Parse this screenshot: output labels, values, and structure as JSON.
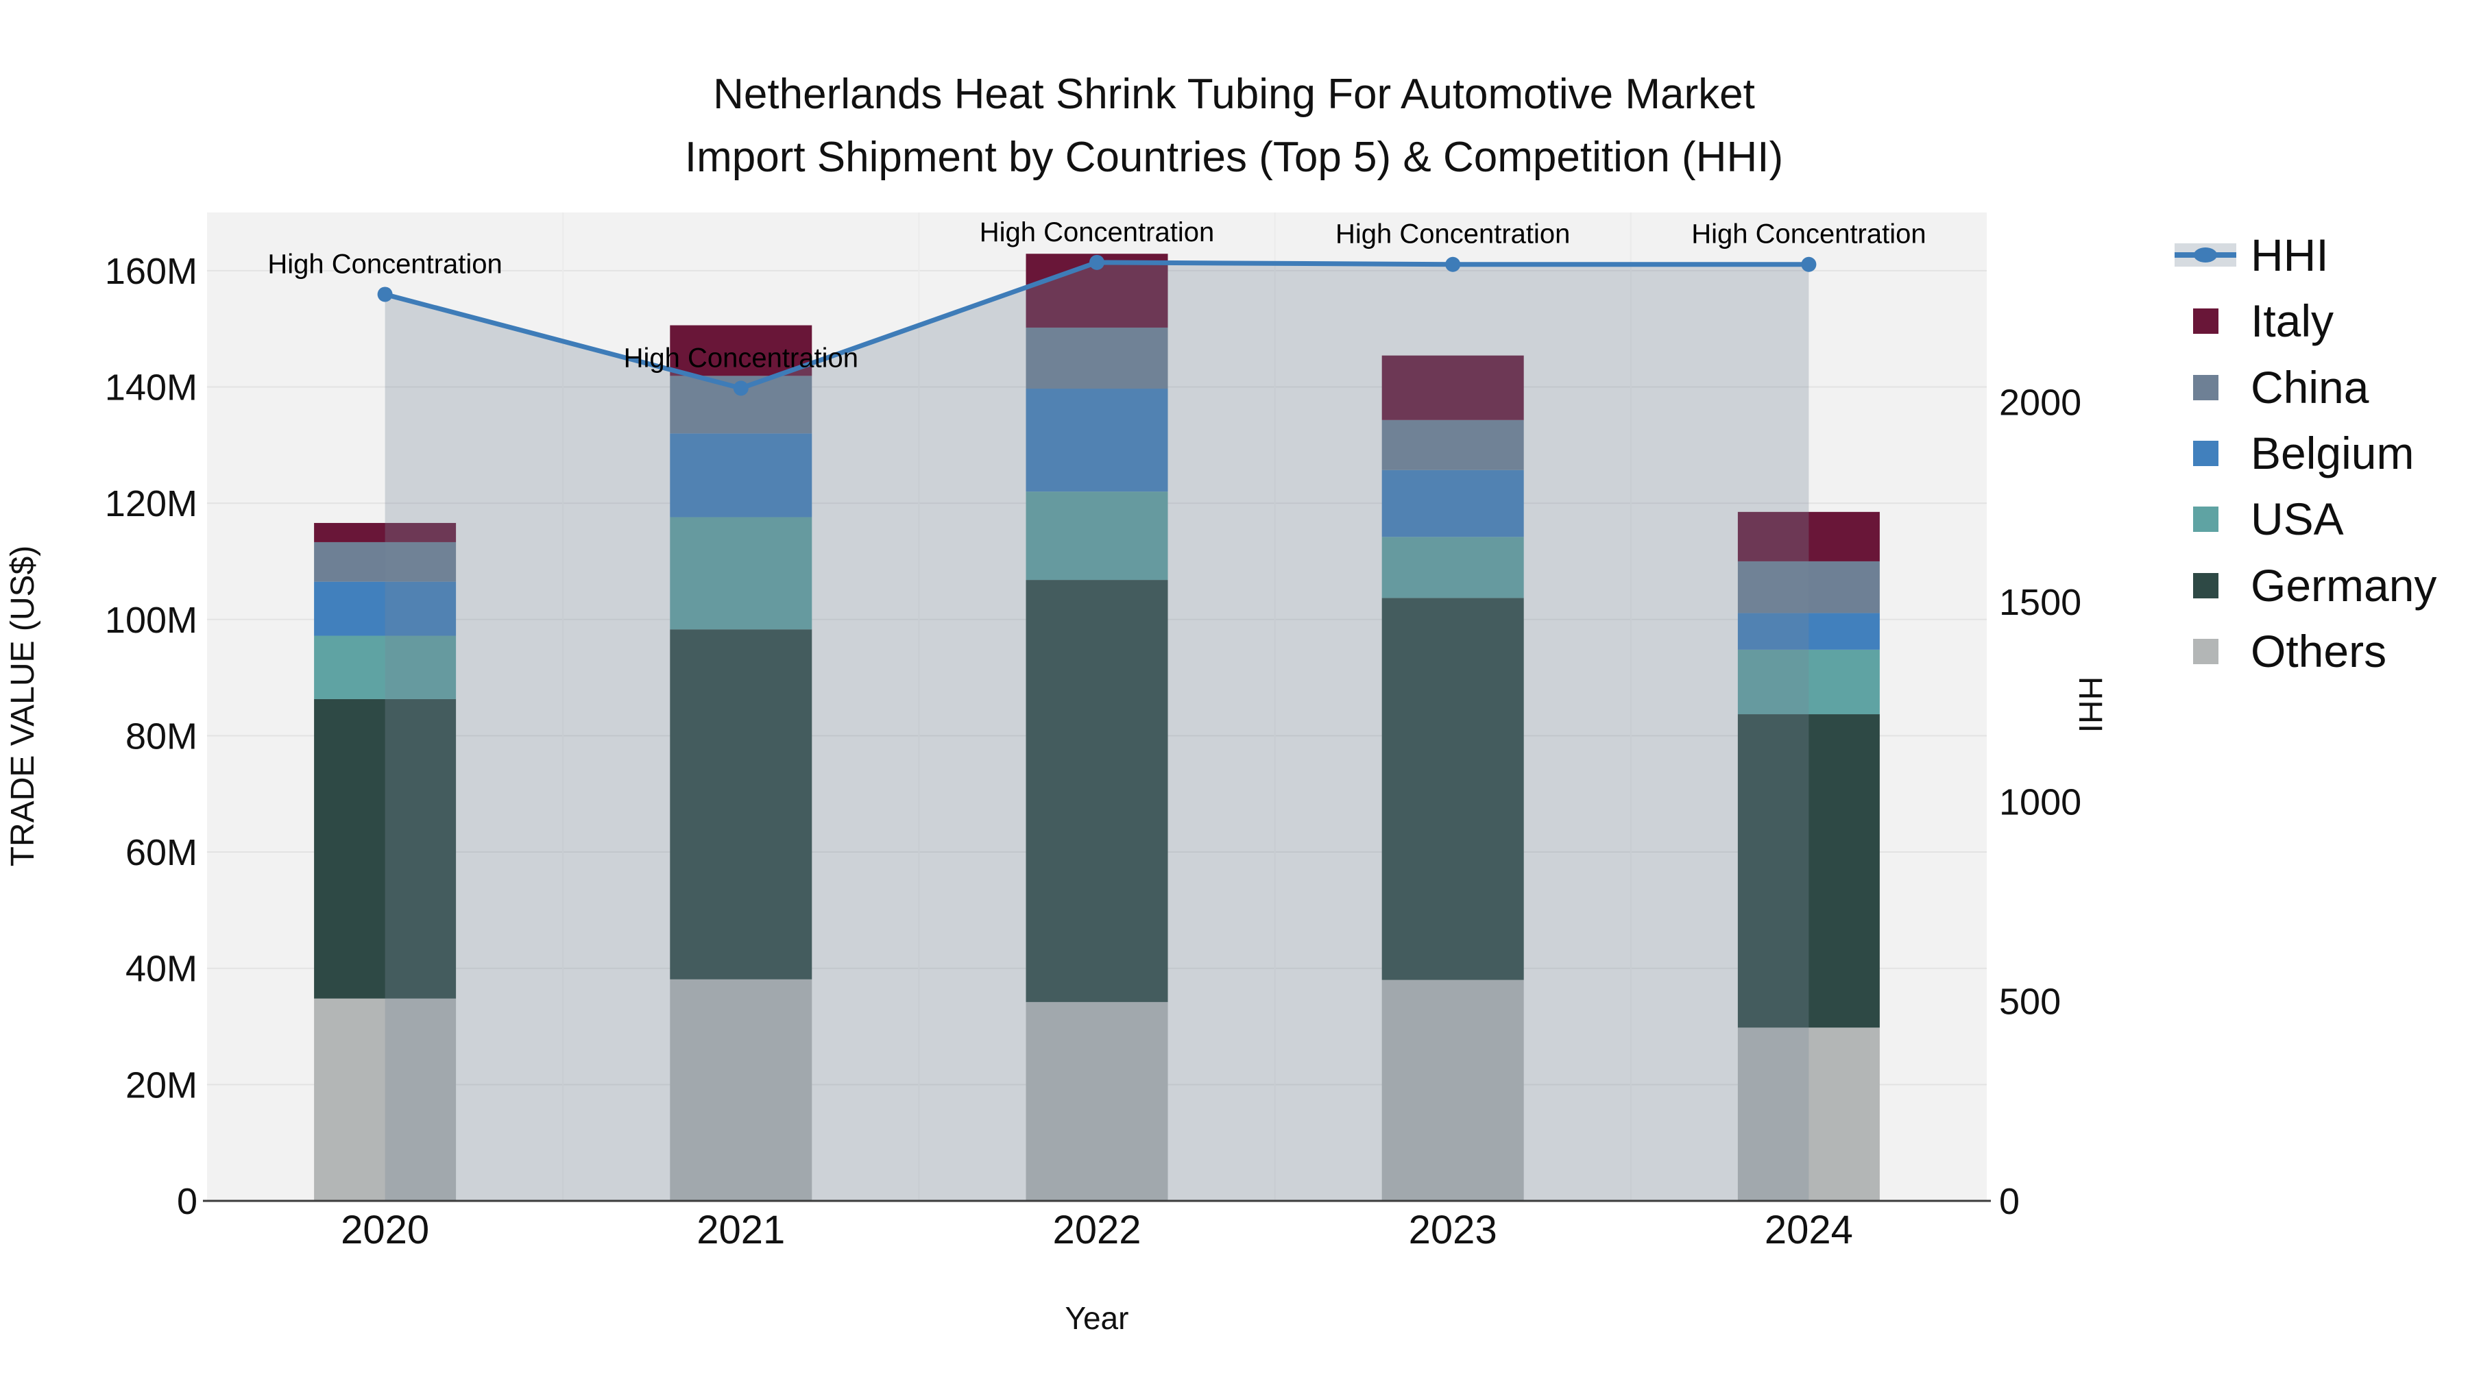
{
  "title": {
    "line1": "Netherlands Heat Shrink Tubing For Automotive Market",
    "line2": "Import Shipment by Countries (Top 5) & Competition (HHI)"
  },
  "legend": {
    "items": [
      {
        "id": "hhi",
        "label": "HHI",
        "type": "line",
        "line_color": "#3E7CB8",
        "band_color": "rgba(119,136,153,0.30)"
      },
      {
        "id": "italy",
        "label": "Italy",
        "type": "swatch",
        "color": "#691638"
      },
      {
        "id": "china",
        "label": "China",
        "type": "swatch",
        "color": "#6E8095"
      },
      {
        "id": "belgium",
        "label": "Belgium",
        "type": "swatch",
        "color": "#4180BD"
      },
      {
        "id": "usa",
        "label": "USA",
        "type": "swatch",
        "color": "#5FA3A3"
      },
      {
        "id": "germany",
        "label": "Germany",
        "type": "swatch",
        "color": "#2E4945"
      },
      {
        "id": "others",
        "label": "Others",
        "type": "swatch",
        "color": "#B3B6B6"
      }
    ]
  },
  "colors": {
    "plot_bg": "#F2F2F2",
    "grid_h": "#E3E3E3",
    "grid_v": "#EBEBEB",
    "axis_line": "#3C3C3C",
    "tick_text": "#111111",
    "hhi_line": "#3E7CB8",
    "hhi_fill": "rgba(119,136,153,0.30)"
  },
  "chart_data": {
    "type": "stacked-bar+line",
    "title": "Netherlands Heat Shrink Tubing For Automotive Market Import Shipment by Countries (Top 5) & Competition (HHI)",
    "categories": [
      "2020",
      "2021",
      "2022",
      "2023",
      "2024"
    ],
    "bar_value_unit": "million US$",
    "series": [
      {
        "name": "Others",
        "color": "#B3B6B6",
        "values": [
          34.8,
          38.1,
          34.2,
          38.0,
          29.8
        ]
      },
      {
        "name": "Germany",
        "color": "#2E4945",
        "values": [
          51.5,
          60.2,
          72.6,
          65.7,
          53.9
        ]
      },
      {
        "name": "USA",
        "color": "#5FA3A3",
        "values": [
          10.9,
          19.3,
          15.2,
          10.5,
          11.1
        ]
      },
      {
        "name": "Belgium",
        "color": "#4180BD",
        "values": [
          9.3,
          14.4,
          17.7,
          11.5,
          6.3
        ]
      },
      {
        "name": "China",
        "color": "#6E8095",
        "values": [
          6.8,
          9.9,
          10.5,
          8.6,
          8.9
        ]
      },
      {
        "name": "Italy",
        "color": "#691638",
        "values": [
          3.3,
          8.7,
          12.7,
          11.1,
          8.5
        ]
      }
    ],
    "bar_totals": [
      116.6,
      150.6,
      162.9,
      145.4,
      118.5
    ],
    "line_series": {
      "name": "HHI",
      "color": "#3E7CB8",
      "fill": "rgba(119,136,153,0.30)",
      "values": [
        2270,
        2035,
        2350,
        2345,
        2345
      ]
    },
    "left_axis": {
      "title": "TRADE VALUE (US$)",
      "tick_values": [
        0,
        20,
        40,
        60,
        80,
        100,
        120,
        140,
        160
      ],
      "tick_labels": [
        "0",
        "20M",
        "40M",
        "60M",
        "80M",
        "100M",
        "120M",
        "140M",
        "160M"
      ],
      "range": [
        0,
        170
      ]
    },
    "right_axis": {
      "title": "HHI",
      "tick_values": [
        0,
        500,
        1000,
        1500,
        2000
      ],
      "tick_labels": [
        "0",
        "500",
        "1000",
        "1500",
        "2000"
      ],
      "range": [
        0,
        2475
      ]
    },
    "x_axis": {
      "title": "Year"
    },
    "annotations": [
      {
        "category": "2020",
        "text": "High Concentration"
      },
      {
        "category": "2021",
        "text": "High Concentration"
      },
      {
        "category": "2022",
        "text": "High Concentration"
      },
      {
        "category": "2023",
        "text": "High Concentration"
      },
      {
        "category": "2024",
        "text": "High Concentration"
      }
    ],
    "layout_hints": {
      "grid": true,
      "legend_position": "top-right",
      "annotation_offset": "above-line-points"
    }
  }
}
